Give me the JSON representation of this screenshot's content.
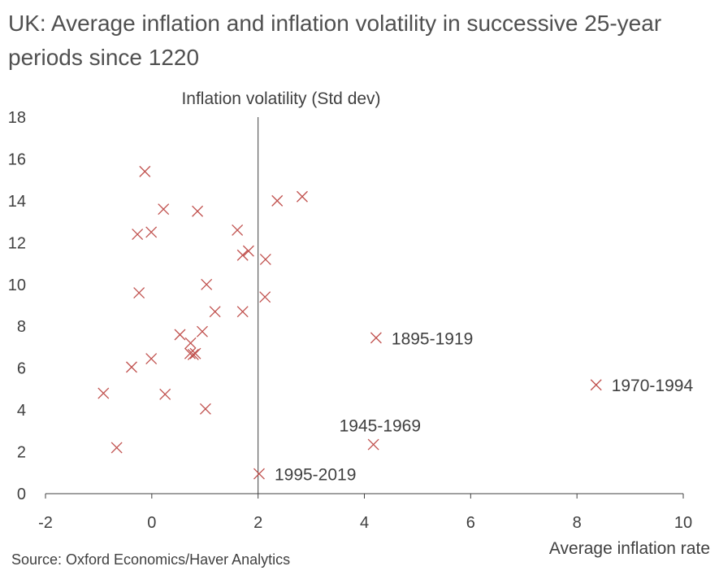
{
  "title": "UK: Average inflation and inflation volatility in successive 25-year periods since 1220",
  "source": "Source: Oxford Economics/Haver Analytics",
  "chart_data": {
    "type": "scatter",
    "title": "UK: Average inflation and inflation volatility in successive 25-year periods since 1220",
    "xlabel": "Average inflation rate",
    "ylabel": "Inflation volatility (Std dev)",
    "xlim": [
      -2,
      10
    ],
    "ylim": [
      0,
      18
    ],
    "xticks": [
      -2,
      0,
      2,
      4,
      6,
      8,
      10
    ],
    "yticks": [
      0,
      2,
      4,
      6,
      8,
      10,
      12,
      14,
      16,
      18
    ],
    "marker": "x",
    "marker_color": "#c0504d",
    "grid": false,
    "points": [
      {
        "x": -0.13,
        "y": 15.4
      },
      {
        "x": 0.22,
        "y": 13.6
      },
      {
        "x": 0.86,
        "y": 13.5
      },
      {
        "x": -0.27,
        "y": 12.4
      },
      {
        "x": -0.01,
        "y": 12.5
      },
      {
        "x": 1.61,
        "y": 12.6
      },
      {
        "x": 1.82,
        "y": 11.6
      },
      {
        "x": 1.71,
        "y": 11.4
      },
      {
        "x": 2.14,
        "y": 11.2
      },
      {
        "x": 2.36,
        "y": 14.0
      },
      {
        "x": 2.83,
        "y": 14.2
      },
      {
        "x": -0.24,
        "y": 9.6
      },
      {
        "x": 1.03,
        "y": 10.0
      },
      {
        "x": 2.13,
        "y": 9.4
      },
      {
        "x": 1.19,
        "y": 8.7
      },
      {
        "x": 1.71,
        "y": 8.7
      },
      {
        "x": 0.53,
        "y": 7.6
      },
      {
        "x": 0.95,
        "y": 7.75
      },
      {
        "x": 0.73,
        "y": 7.2
      },
      {
        "x": 0.72,
        "y": 6.7
      },
      {
        "x": 0.78,
        "y": 6.65
      },
      {
        "x": 0.82,
        "y": 6.7
      },
      {
        "x": -0.01,
        "y": 6.45
      },
      {
        "x": -0.38,
        "y": 6.05
      },
      {
        "x": -0.91,
        "y": 4.8
      },
      {
        "x": 0.25,
        "y": 4.75
      },
      {
        "x": 1.01,
        "y": 4.05
      },
      {
        "x": -0.66,
        "y": 2.2
      },
      {
        "x": 4.22,
        "y": 7.45,
        "label": "1895-1919"
      },
      {
        "x": 8.36,
        "y": 5.2,
        "label": "1970-1994"
      },
      {
        "x": 4.17,
        "y": 2.35,
        "label": "1945-1969"
      },
      {
        "x": 2.02,
        "y": 0.95,
        "label": "1995-2019"
      }
    ]
  }
}
